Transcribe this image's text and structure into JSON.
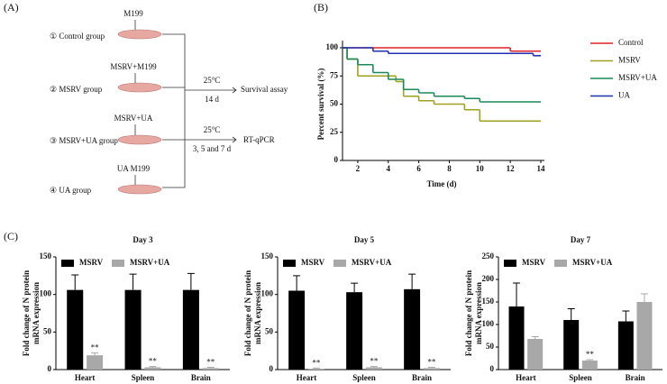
{
  "diagram": {
    "panel": "(A)",
    "fish_labels": [
      "M199",
      "MSRV+M199",
      "MSRV+UA",
      "UA M199"
    ],
    "groups": [
      "① Control group",
      "② MSRV group",
      "③ MSRV+UA group",
      "④ UA group"
    ],
    "arrows": [
      {
        "above": "25°C",
        "below": "14 d",
        "target": "Survival assay"
      },
      {
        "above": "25°C",
        "below": "3, 5 and 7 d",
        "target": "RT-qPCR"
      }
    ]
  },
  "chart_data": [
    {
      "type": "step",
      "panel": "(B)",
      "xlabel": "Time (d)",
      "ylabel": "Percent survival (%)",
      "xlim": [
        1,
        14
      ],
      "ylim": [
        0,
        100
      ],
      "xticks": [
        2,
        4,
        6,
        8,
        10,
        12,
        14
      ],
      "yticks": [
        0,
        25,
        50,
        75,
        100
      ],
      "series": [
        {
          "name": "Control",
          "color": "#e0202a",
          "x": [
            1,
            12,
            14
          ],
          "values": [
            100,
            97,
            97
          ]
        },
        {
          "name": "MSRV",
          "color": "#a0a020",
          "x": [
            1,
            1.3,
            2,
            4.5,
            5,
            6,
            7,
            9,
            10,
            14
          ],
          "values": [
            100,
            90,
            75,
            70,
            57,
            53,
            50,
            45,
            35,
            35
          ]
        },
        {
          "name": "MSRV+UA",
          "color": "#1a8a5a",
          "x": [
            1,
            1.3,
            2,
            3,
            4,
            5,
            6,
            7,
            9,
            10,
            14
          ],
          "values": [
            100,
            90,
            85,
            78,
            72,
            63,
            60,
            57,
            55,
            52,
            52
          ]
        },
        {
          "name": "UA",
          "color": "#2030b0",
          "x": [
            1,
            3,
            4,
            13.5,
            14
          ],
          "values": [
            100,
            97,
            95,
            93,
            93
          ]
        }
      ]
    },
    {
      "type": "bar",
      "panel": "(C)",
      "title": "Day 3",
      "ylabel": [
        "Fold change of N protein",
        "mRNA expression"
      ],
      "ylim": [
        0,
        150
      ],
      "yticks": [
        0,
        50,
        100,
        150
      ],
      "categories": [
        "Heart",
        "Spleen",
        "Brain"
      ],
      "series": [
        {
          "name": "MSRV",
          "color": "#000000",
          "values": [
            106,
            106,
            106
          ],
          "errors": [
            20,
            21,
            22
          ]
        },
        {
          "name": "MSRV+UA",
          "color": "#a8a8a8",
          "values": [
            19,
            3,
            2
          ],
          "errors": [
            3,
            1,
            1
          ],
          "annotations": [
            "**",
            "**",
            "**"
          ]
        }
      ]
    },
    {
      "type": "bar",
      "title": "Day 5",
      "ylabel": [
        "Fold change of N protein",
        "mRNA expression"
      ],
      "ylim": [
        0,
        150
      ],
      "yticks": [
        0,
        50,
        100,
        150
      ],
      "categories": [
        "Heart",
        "Spleen",
        "Brain"
      ],
      "series": [
        {
          "name": "MSRV",
          "color": "#000000",
          "values": [
            105,
            103,
            107
          ],
          "errors": [
            20,
            12,
            20
          ]
        },
        {
          "name": "MSRV+UA",
          "color": "#a8a8a8",
          "values": [
            1,
            3,
            2
          ],
          "errors": [
            1,
            1,
            1
          ],
          "annotations": [
            "**",
            "**",
            "**"
          ]
        }
      ]
    },
    {
      "type": "bar",
      "title": "Day 7",
      "ylabel": [
        "Fold change of N protein",
        "mRNA expression"
      ],
      "ylim": [
        0,
        250
      ],
      "yticks": [
        0,
        50,
        100,
        150,
        200,
        250
      ],
      "categories": [
        "Heart",
        "Spleen",
        "Brain"
      ],
      "series": [
        {
          "name": "MSRV",
          "color": "#000000",
          "values": [
            140,
            110,
            107
          ],
          "errors": [
            52,
            25,
            23
          ]
        },
        {
          "name": "MSRV+UA",
          "color": "#a8a8a8",
          "values": [
            68,
            20,
            150
          ],
          "errors": [
            5,
            2,
            18
          ],
          "annotations": [
            null,
            "**",
            null
          ]
        }
      ]
    }
  ]
}
